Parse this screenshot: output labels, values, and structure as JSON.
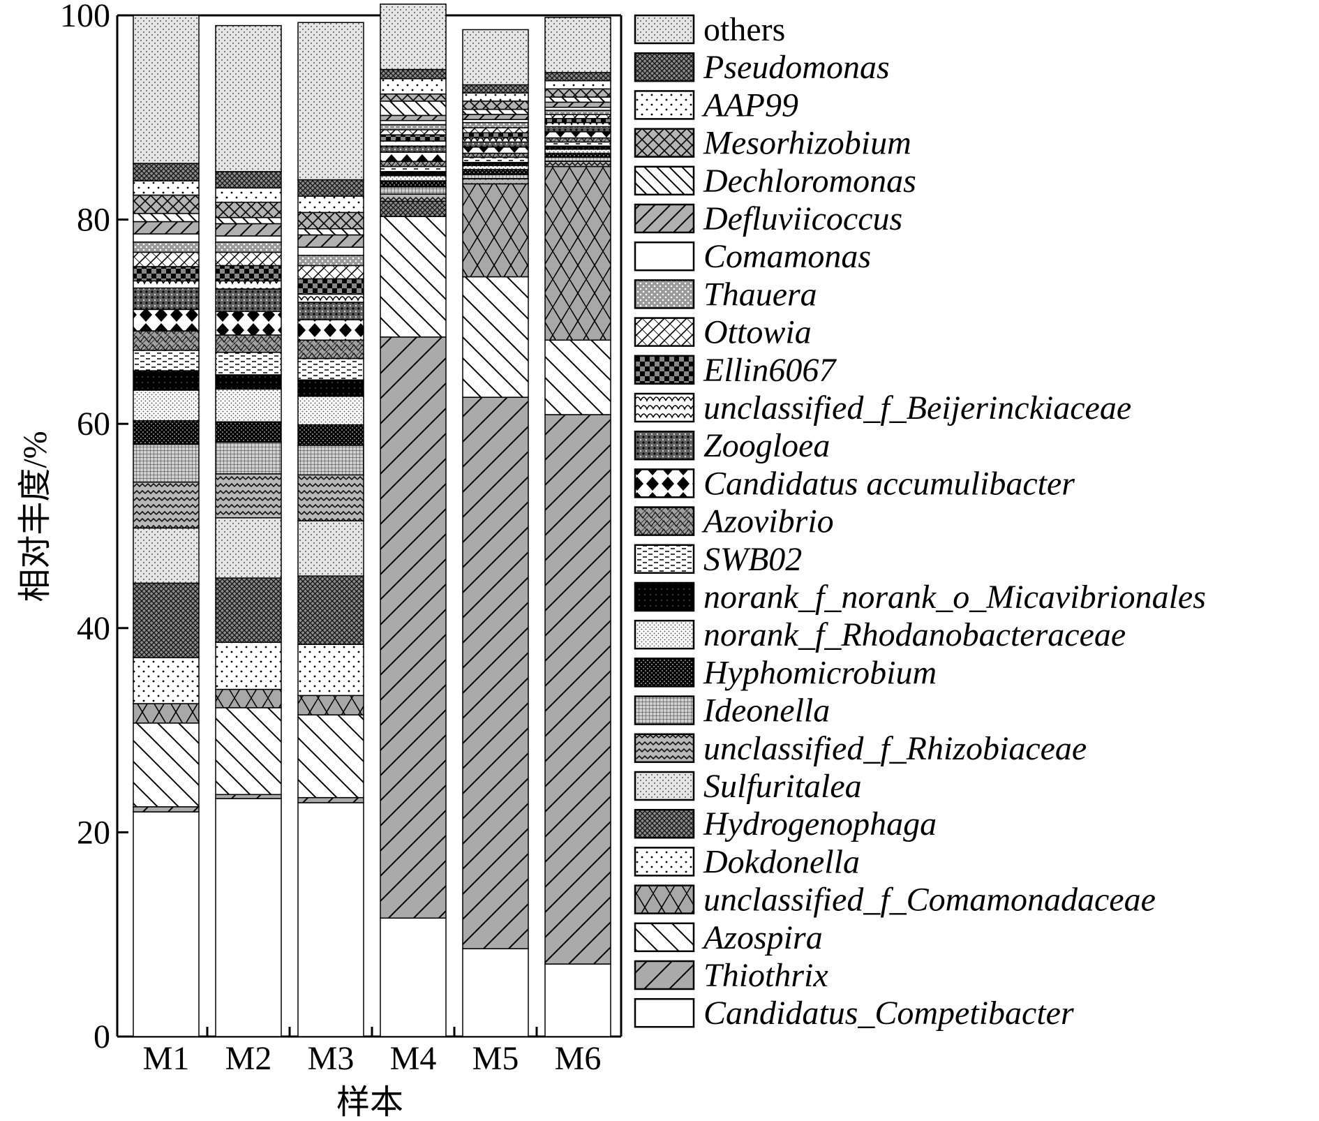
{
  "chart_data": {
    "type": "bar",
    "stacked": true,
    "xlabel": "样本",
    "ylabel": "相对丰度/%",
    "ylim": [
      0,
      100
    ],
    "yticks": [
      0,
      20,
      40,
      60,
      80,
      100
    ],
    "categories": [
      "M1",
      "M2",
      "M3",
      "M4",
      "M5",
      "M6"
    ],
    "legend_position": "right",
    "series": [
      {
        "name": "Candidatus_Competibacter",
        "pattern": "blank",
        "values": [
          22.0,
          23.3,
          22.9,
          11.6,
          8.6,
          7.1
        ]
      },
      {
        "name": "Thiothrix",
        "pattern": "diag-forward",
        "values": [
          0.5,
          0.4,
          0.5,
          56.9,
          54.0,
          53.8
        ]
      },
      {
        "name": "Azospira",
        "pattern": "diag-backward",
        "values": [
          8.2,
          8.5,
          8.1,
          11.8,
          11.8,
          7.3
        ]
      },
      {
        "name": "unclassified_f_Comamonadaceae",
        "pattern": "cross-hatch",
        "values": [
          1.9,
          1.8,
          1.9,
          0.0,
          9.1,
          17.0
        ]
      },
      {
        "name": "Dokdonella",
        "pattern": "sparse-dots",
        "values": [
          4.5,
          4.6,
          5.0,
          0.0,
          0.0,
          0.0
        ]
      },
      {
        "name": "Hydrogenophaga",
        "pattern": "dense-crosshatch",
        "values": [
          7.3,
          6.3,
          6.7,
          1.5,
          0.0,
          0.0
        ]
      },
      {
        "name": "Sulfuritalea",
        "pattern": "fine-dots",
        "values": [
          5.4,
          5.9,
          5.4,
          0.0,
          0.0,
          0.0
        ]
      },
      {
        "name": "unclassified_f_Rhizobiaceae",
        "pattern": "zigzag",
        "values": [
          4.5,
          4.3,
          4.5,
          0.7,
          0.5,
          0.5
        ]
      },
      {
        "name": "Ideonella",
        "pattern": "fine-grid",
        "values": [
          3.7,
          3.1,
          2.9,
          0.7,
          0.4,
          0.4
        ]
      },
      {
        "name": "Hyphomicrobium",
        "pattern": "black-check",
        "values": [
          2.3,
          2.0,
          2.0,
          0.6,
          0.5,
          0.4
        ]
      },
      {
        "name": "norank_f_Rhodanobacteraceae",
        "pattern": "light-dots",
        "values": [
          3.0,
          3.2,
          2.8,
          0.5,
          0.4,
          0.4
        ]
      },
      {
        "name": "norank_f_norank_o_Micavibrionales",
        "pattern": "solid-black",
        "values": [
          1.9,
          1.4,
          1.6,
          0.4,
          0.3,
          0.3
        ]
      },
      {
        "name": "SWB02",
        "pattern": "dashes",
        "values": [
          2.0,
          2.2,
          2.1,
          0.5,
          0.5,
          0.4
        ]
      },
      {
        "name": "Azovibrio",
        "pattern": "waves",
        "values": [
          1.9,
          1.7,
          1.8,
          0.5,
          0.4,
          0.4
        ]
      },
      {
        "name": "Candidatus accumulibacter",
        "pattern": "diamonds",
        "values": [
          2.1,
          2.3,
          2.0,
          0.9,
          0.6,
          0.6
        ]
      },
      {
        "name": "Zoogloea",
        "pattern": "coarse-dots",
        "values": [
          2.1,
          2.2,
          1.7,
          0.6,
          0.5,
          0.5
        ]
      },
      {
        "name": "unclassified_f_Beijerinckiaceae",
        "pattern": "scales",
        "values": [
          0.7,
          0.8,
          0.8,
          0.5,
          0.4,
          0.4
        ]
      },
      {
        "name": "Ellin6067",
        "pattern": "checker",
        "values": [
          1.4,
          1.5,
          1.5,
          0.6,
          0.5,
          0.4
        ]
      },
      {
        "name": "Ottowia",
        "pattern": "diag-grid",
        "values": [
          1.4,
          1.3,
          1.3,
          0.5,
          0.5,
          0.4
        ]
      },
      {
        "name": "Thauera",
        "pattern": "grey-dots",
        "values": [
          1.0,
          1.0,
          1.0,
          0.5,
          0.5,
          0.4
        ]
      },
      {
        "name": "Comamonas",
        "pattern": "blank",
        "values": [
          0.8,
          0.6,
          0.8,
          0.4,
          0.3,
          0.3
        ]
      },
      {
        "name": "Defluviicoccus",
        "pattern": "diag-forward-grey",
        "values": [
          1.2,
          1.2,
          1.2,
          0.5,
          0.5,
          0.5
        ]
      },
      {
        "name": "Dechloromonas",
        "pattern": "diag-backward-sparse",
        "values": [
          0.8,
          0.6,
          0.6,
          1.4,
          0.5,
          0.5
        ]
      },
      {
        "name": "Mesorhizobium",
        "pattern": "cross-hatch-grey",
        "values": [
          1.8,
          1.5,
          1.6,
          0.7,
          0.8,
          0.8
        ]
      },
      {
        "name": "AAP99",
        "pattern": "sparse-dots",
        "values": [
          1.4,
          1.4,
          1.6,
          1.5,
          0.8,
          0.8
        ]
      },
      {
        "name": "Pseudomonas",
        "pattern": "dense-crosshatch",
        "values": [
          1.7,
          1.6,
          1.6,
          0.9,
          0.8,
          0.8
        ]
      },
      {
        "name": "others",
        "pattern": "fine-dots",
        "values": [
          14.5,
          14.3,
          15.4,
          6.4,
          5.4,
          5.4
        ]
      }
    ]
  }
}
